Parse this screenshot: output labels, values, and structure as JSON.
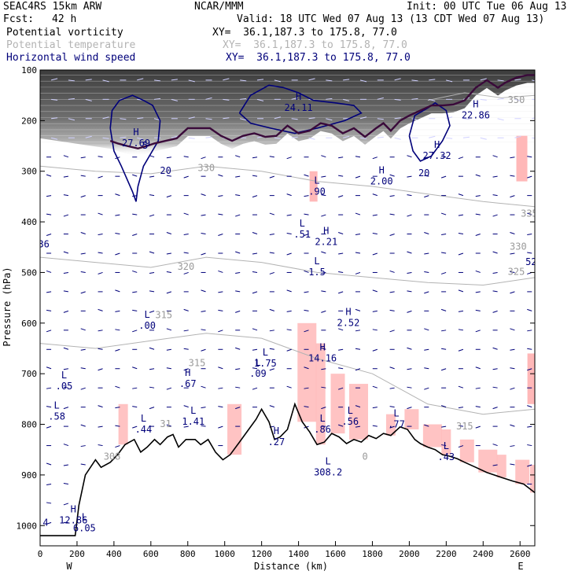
{
  "header": {
    "model": "SEAC4RS 15km ARW",
    "org": "NCAR/MMM",
    "init": "Init: 00 UTC Tue 06 Aug 13",
    "fcst_label": "Fcst:",
    "fcst_value": "42 h",
    "valid": "Valid: 18 UTC Wed 07 Aug 13 (13 CDT Wed 07 Aug 13)",
    "fields": [
      {
        "name": "Potential vorticity",
        "xy": "XY=  36.1,187.3 to 175.8, 77.0",
        "color": "#000000"
      },
      {
        "name": "Potential temperature",
        "xy": "XY=  36.1,187.3 to 175.8, 77.0",
        "color": "#b3b3b3"
      },
      {
        "name": "Horizontal wind speed",
        "xy": "XY=  36.1,187.3 to 175.8, 77.0",
        "color": "#00007a"
      }
    ]
  },
  "chart_data": {
    "type": "cross-section",
    "xlabel": "Distance (km)",
    "ylabel": "Pressure (hPa)",
    "xlim": [
      0,
      2680
    ],
    "ylim": [
      100,
      1040
    ],
    "xticks": [
      0,
      200,
      400,
      600,
      800,
      1000,
      1200,
      1400,
      1600,
      1800,
      2000,
      2200,
      2400,
      2600
    ],
    "yticks": [
      100,
      200,
      300,
      400,
      500,
      600,
      700,
      800,
      900,
      1000
    ],
    "x_end_labels": {
      "left": "W",
      "right": "E"
    },
    "colors": {
      "pv_shading": "#555555",
      "pv_contour": "#3a0a3a",
      "theta": "#b3b3b3",
      "wind": "#00007a",
      "pink_fill": "#ffb8b8",
      "terrain": "#000000"
    },
    "terrain": [
      [
        0,
        1020
      ],
      [
        190,
        1020
      ],
      [
        210,
        960
      ],
      [
        245,
        900
      ],
      [
        300,
        870
      ],
      [
        330,
        885
      ],
      [
        380,
        875
      ],
      [
        420,
        860
      ],
      [
        460,
        840
      ],
      [
        510,
        830
      ],
      [
        545,
        855
      ],
      [
        580,
        845
      ],
      [
        620,
        830
      ],
      [
        650,
        840
      ],
      [
        690,
        825
      ],
      [
        720,
        820
      ],
      [
        750,
        845
      ],
      [
        790,
        830
      ],
      [
        840,
        830
      ],
      [
        870,
        840
      ],
      [
        910,
        830
      ],
      [
        950,
        855
      ],
      [
        990,
        870
      ],
      [
        1030,
        860
      ],
      [
        1080,
        835
      ],
      [
        1130,
        810
      ],
      [
        1170,
        790
      ],
      [
        1200,
        770
      ],
      [
        1240,
        795
      ],
      [
        1270,
        830
      ],
      [
        1300,
        825
      ],
      [
        1340,
        810
      ],
      [
        1380,
        760
      ],
      [
        1420,
        795
      ],
      [
        1460,
        815
      ],
      [
        1500,
        840
      ],
      [
        1540,
        835
      ],
      [
        1580,
        818
      ],
      [
        1620,
        825
      ],
      [
        1660,
        838
      ],
      [
        1700,
        830
      ],
      [
        1740,
        835
      ],
      [
        1780,
        822
      ],
      [
        1820,
        828
      ],
      [
        1860,
        818
      ],
      [
        1900,
        822
      ],
      [
        1950,
        805
      ],
      [
        1990,
        810
      ],
      [
        2030,
        830
      ],
      [
        2060,
        838
      ],
      [
        2100,
        845
      ],
      [
        2140,
        850
      ],
      [
        2180,
        860
      ],
      [
        2220,
        863
      ],
      [
        2260,
        868
      ],
      [
        2300,
        875
      ],
      [
        2360,
        885
      ],
      [
        2420,
        895
      ],
      [
        2500,
        905
      ],
      [
        2560,
        912
      ],
      [
        2620,
        918
      ],
      [
        2680,
        935
      ]
    ],
    "tropopause": [
      [
        380,
        240
      ],
      [
        420,
        245
      ],
      [
        470,
        250
      ],
      [
        530,
        255
      ],
      [
        580,
        250
      ],
      [
        620,
        245
      ],
      [
        680,
        240
      ],
      [
        740,
        235
      ],
      [
        800,
        215
      ],
      [
        860,
        215
      ],
      [
        920,
        215
      ],
      [
        980,
        230
      ],
      [
        1040,
        240
      ],
      [
        1100,
        230
      ],
      [
        1160,
        225
      ],
      [
        1220,
        232
      ],
      [
        1280,
        230
      ],
      [
        1340,
        210
      ],
      [
        1400,
        225
      ],
      [
        1460,
        220
      ],
      [
        1520,
        205
      ],
      [
        1580,
        210
      ],
      [
        1640,
        225
      ],
      [
        1700,
        215
      ],
      [
        1760,
        232
      ],
      [
        1820,
        215
      ],
      [
        1860,
        205
      ],
      [
        1900,
        220
      ],
      [
        1950,
        200
      ],
      [
        2000,
        190
      ],
      [
        2060,
        180
      ],
      [
        2120,
        170
      ],
      [
        2180,
        170
      ],
      [
        2240,
        168
      ],
      [
        2300,
        160
      ],
      [
        2360,
        135
      ],
      [
        2420,
        120
      ],
      [
        2480,
        135
      ],
      [
        2520,
        125
      ],
      [
        2580,
        115
      ],
      [
        2640,
        110
      ],
      [
        2680,
        110
      ]
    ],
    "theta_contours": [
      {
        "label": "330",
        "points": [
          [
            0,
            290
          ],
          [
            300,
            300
          ],
          [
            600,
            305
          ],
          [
            900,
            290
          ],
          [
            1200,
            300
          ],
          [
            1500,
            320
          ],
          [
            1800,
            330
          ],
          [
            2100,
            345
          ],
          [
            2400,
            360
          ],
          [
            2680,
            370
          ]
        ]
      },
      {
        "label": "325",
        "points": [
          [
            0,
            470
          ],
          [
            300,
            480
          ],
          [
            600,
            490
          ],
          [
            900,
            470
          ],
          [
            1200,
            480
          ],
          [
            1500,
            500
          ],
          [
            1800,
            510
          ],
          [
            2100,
            520
          ],
          [
            2400,
            525
          ],
          [
            2680,
            510
          ]
        ]
      },
      {
        "label": "315",
        "points": [
          [
            0,
            640
          ],
          [
            300,
            650
          ],
          [
            600,
            635
          ],
          [
            900,
            620
          ],
          [
            1200,
            630
          ],
          [
            1500,
            670
          ],
          [
            1800,
            700
          ],
          [
            2100,
            760
          ],
          [
            2400,
            780
          ],
          [
            2680,
            770
          ]
        ]
      },
      {
        "label": "350",
        "points": [
          [
            2100,
            160
          ],
          [
            2300,
            145
          ],
          [
            2500,
            155
          ],
          [
            2680,
            150
          ]
        ]
      }
    ],
    "wind_contours": [
      {
        "label": "20",
        "points": [
          [
            380,
            215
          ],
          [
            390,
            180
          ],
          [
            430,
            160
          ],
          [
            500,
            150
          ],
          [
            560,
            160
          ],
          [
            610,
            170
          ],
          [
            650,
            200
          ],
          [
            640,
            240
          ],
          [
            560,
            290
          ],
          [
            530,
            330
          ],
          [
            520,
            360
          ],
          [
            500,
            340
          ],
          [
            440,
            290
          ],
          [
            400,
            260
          ],
          [
            380,
            215
          ]
        ]
      },
      {
        "label": "24.11",
        "points": [
          [
            1080,
            185
          ],
          [
            1140,
            150
          ],
          [
            1240,
            130
          ],
          [
            1320,
            135
          ],
          [
            1400,
            145
          ],
          [
            1480,
            160
          ],
          [
            1600,
            165
          ],
          [
            1700,
            170
          ],
          [
            1740,
            185
          ],
          [
            1650,
            200
          ],
          [
            1500,
            215
          ],
          [
            1380,
            225
          ],
          [
            1250,
            215
          ],
          [
            1140,
            205
          ],
          [
            1080,
            185
          ]
        ]
      },
      {
        "label": "20",
        "points": [
          [
            2000,
            230
          ],
          [
            2030,
            190
          ],
          [
            2100,
            175
          ],
          [
            2140,
            165
          ],
          [
            2200,
            180
          ],
          [
            2220,
            210
          ],
          [
            2180,
            240
          ],
          [
            2120,
            270
          ],
          [
            2060,
            280
          ],
          [
            2020,
            260
          ],
          [
            2000,
            230
          ]
        ]
      }
    ],
    "extrema": [
      {
        "type": "H",
        "value": "27.69",
        "x": 520,
        "p": 240
      },
      {
        "type": "H",
        "value": "24.11",
        "x": 1400,
        "p": 170
      },
      {
        "type": "H",
        "value": "22.86",
        "x": 2360,
        "p": 185
      },
      {
        "type": "H",
        "value": "27.32",
        "x": 2150,
        "p": 265
      },
      {
        "type": "H",
        "value": "2.00",
        "x": 1850,
        "p": 315
      },
      {
        "type": "L",
        "value": ".90",
        "x": 1500,
        "p": 335
      },
      {
        "type": "L",
        "value": ".51",
        "x": 1420,
        "p": 420
      },
      {
        "type": "H",
        "value": "2.21",
        "x": 1550,
        "p": 435
      },
      {
        "type": "L",
        "value": "1.5",
        "x": 1500,
        "p": 495
      },
      {
        "type": "H",
        "value": "2.52",
        "x": 1670,
        "p": 595
      },
      {
        "type": "L",
        "value": ".00",
        "x": 580,
        "p": 600
      },
      {
        "type": "L",
        "value": "1.75",
        "x": 1220,
        "p": 675
      },
      {
        "type": "L",
        "value": ".09",
        "x": 1180,
        "p": 695
      },
      {
        "type": "H",
        "value": "14.16",
        "x": 1530,
        "p": 665
      },
      {
        "type": "H",
        "value": ".67",
        "x": 800,
        "p": 715
      },
      {
        "type": "L",
        "value": ".05",
        "x": 130,
        "p": 720
      },
      {
        "type": "L",
        "value": ".58",
        "x": 90,
        "p": 780
      },
      {
        "type": "L",
        "value": "1.41",
        "x": 830,
        "p": 790
      },
      {
        "type": "L",
        "value": ".44",
        "x": 560,
        "p": 805
      },
      {
        "type": "L",
        "value": ".56",
        "x": 1680,
        "p": 790
      },
      {
        "type": "L",
        "value": ".86",
        "x": 1530,
        "p": 805
      },
      {
        "type": "L",
        "value": ".77",
        "x": 1930,
        "p": 795
      },
      {
        "type": "H",
        "value": ".27",
        "x": 1280,
        "p": 830
      },
      {
        "type": "L",
        "value": ".43",
        "x": 2200,
        "p": 860
      },
      {
        "type": "L",
        "value": "308.2",
        "x": 1560,
        "p": 890
      },
      {
        "type": "H",
        "value": "12.86",
        "x": 180,
        "p": 985
      },
      {
        "type": "L",
        "value": "6.05",
        "x": 240,
        "p": 1000
      }
    ],
    "labels": [
      {
        "text": "330",
        "x": 900,
        "p": 300,
        "kind": "theta"
      },
      {
        "text": "335",
        "x": 2650,
        "p": 390,
        "kind": "theta"
      },
      {
        "text": "330",
        "x": 2590,
        "p": 455,
        "kind": "theta"
      },
      {
        "text": "325",
        "x": 2580,
        "p": 505,
        "kind": "theta"
      },
      {
        "text": "320",
        "x": 790,
        "p": 495,
        "kind": "theta"
      },
      {
        "text": "315",
        "x": 670,
        "p": 590,
        "kind": "theta"
      },
      {
        "text": "315",
        "x": 850,
        "p": 685,
        "kind": "theta"
      },
      {
        "text": "31",
        "x": 680,
        "p": 805,
        "kind": "theta"
      },
      {
        "text": "308",
        "x": 390,
        "p": 870,
        "kind": "theta"
      },
      {
        "text": "315",
        "x": 2300,
        "p": 810,
        "kind": "theta"
      },
      {
        "text": "350",
        "x": 2580,
        "p": 165,
        "kind": "theta"
      },
      {
        "text": "36",
        "x": 20,
        "p": 450,
        "kind": "wind"
      },
      {
        "text": "52",
        "x": 2660,
        "p": 485,
        "kind": "wind"
      },
      {
        "text": "20",
        "x": 680,
        "p": 305,
        "kind": "wind"
      },
      {
        "text": "20",
        "x": 2080,
        "p": 310,
        "kind": "wind"
      },
      {
        "text": "5",
        "x": 570,
        "p": 255,
        "kind": "wind"
      },
      {
        "text": "4",
        "x": 30,
        "p": 1000,
        "kind": "wind"
      },
      {
        "text": "0",
        "x": 1760,
        "p": 870,
        "kind": "theta"
      }
    ]
  }
}
